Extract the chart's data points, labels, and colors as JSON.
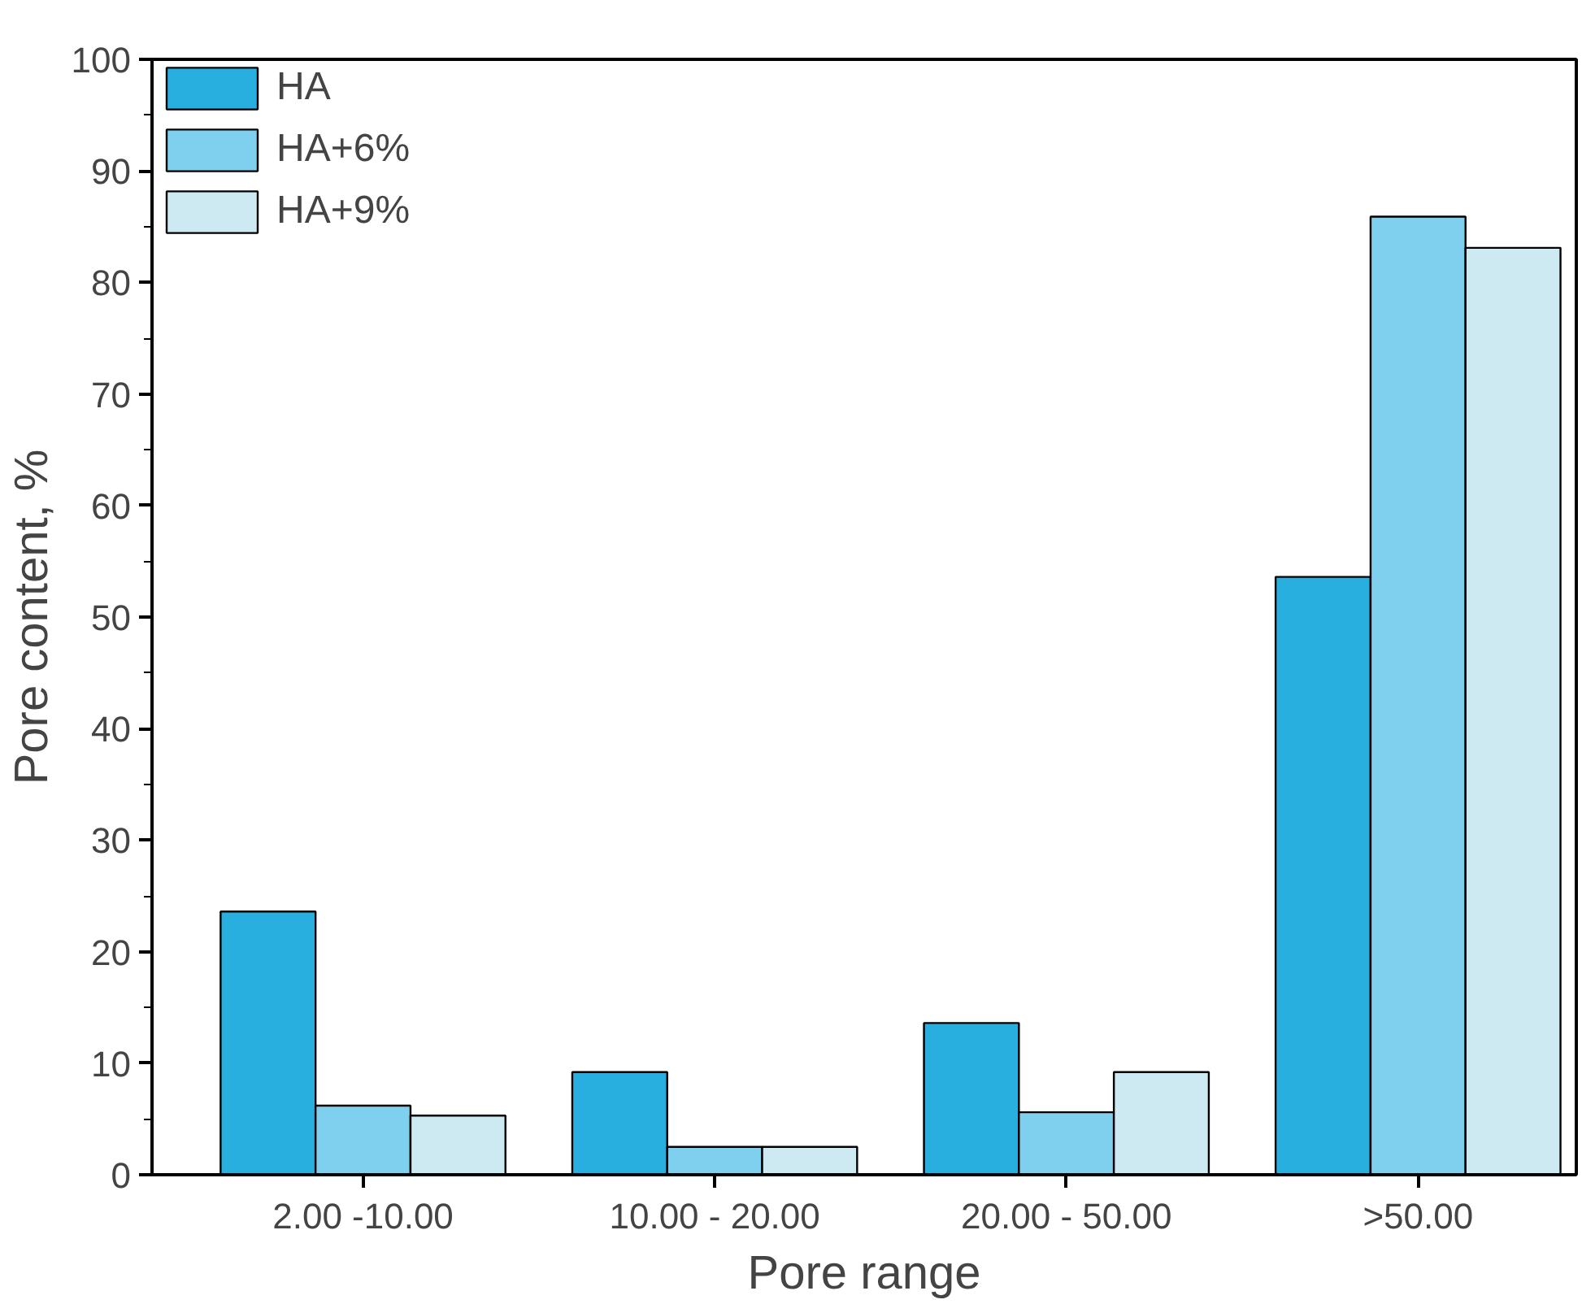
{
  "chart_data": {
    "type": "bar",
    "xlabel": "Pore range",
    "ylabel": "Pore content, %",
    "categories": [
      "2.00 -10.00",
      "10.00 - 20.00",
      "20.00 - 50.00",
      ">50.00"
    ],
    "series": [
      {
        "name": "HA",
        "color": "#29aee0",
        "values": [
          23.6,
          9.2,
          13.6,
          53.6
        ]
      },
      {
        "name": "HA+6%",
        "color": "#7fcfee",
        "values": [
          6.2,
          2.5,
          5.6,
          85.9
        ]
      },
      {
        "name": "HA+9%",
        "color": "#cde9f2",
        "values": [
          5.3,
          2.5,
          9.2,
          83.1
        ]
      }
    ],
    "ylim": [
      0,
      100
    ],
    "yticks": [
      0,
      10,
      20,
      30,
      40,
      50,
      60,
      70,
      80,
      90,
      100
    ],
    "grid": false,
    "legend": "top left"
  }
}
